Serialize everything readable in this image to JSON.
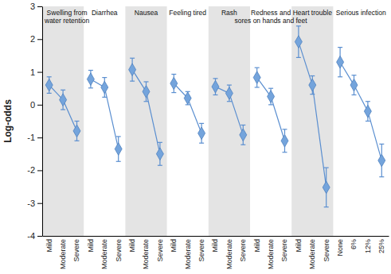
{
  "chart_data": {
    "type": "line",
    "y_label": "Log-odds",
    "ylim": [
      -4,
      3
    ],
    "yticks": [
      -4,
      -3,
      -2,
      -1,
      0,
      1,
      2,
      3
    ],
    "marker": "diamond",
    "color": "#5b8fd0",
    "series": [
      {
        "name": "Swelling from\nwater retention",
        "categories": [
          "Mild",
          "Moderate",
          "Severe"
        ],
        "values": [
          0.6,
          0.15,
          -0.8
        ],
        "errors": [
          0.25,
          0.3,
          0.3
        ]
      },
      {
        "name": "Diarrhea",
        "categories": [
          "Mild",
          "Moderate",
          "Severe"
        ],
        "values": [
          0.78,
          0.53,
          -1.35
        ],
        "errors": [
          0.27,
          0.3,
          0.38
        ]
      },
      {
        "name": "Nausea",
        "categories": [
          "Mild",
          "Moderate",
          "Severe"
        ],
        "values": [
          1.07,
          0.4,
          -1.5
        ],
        "errors": [
          0.35,
          0.3,
          0.35
        ]
      },
      {
        "name": "Feeling tired",
        "categories": [
          "Mild",
          "Moderate",
          "Severe"
        ],
        "values": [
          0.65,
          0.2,
          -0.87
        ],
        "errors": [
          0.28,
          0.2,
          0.3
        ]
      },
      {
        "name": "Rash",
        "categories": [
          "Mild",
          "Moderate",
          "Severe"
        ],
        "values": [
          0.55,
          0.35,
          -0.92
        ],
        "errors": [
          0.25,
          0.25,
          0.3
        ]
      },
      {
        "name": "Redness and\nsores on hands and feet",
        "categories": [
          "Mild",
          "Moderate",
          "Severe"
        ],
        "values": [
          0.83,
          0.25,
          -1.1
        ],
        "errors": [
          0.3,
          0.25,
          0.35
        ]
      },
      {
        "name": "Heart trouble",
        "categories": [
          "Mild",
          "Moderate",
          "Severe"
        ],
        "values": [
          1.92,
          0.6,
          -2.52
        ],
        "errors": [
          0.48,
          0.28,
          0.6
        ]
      },
      {
        "name": "Serious infection",
        "categories": [
          "None",
          "6%",
          "12%",
          "25%"
        ],
        "values": [
          1.3,
          0.6,
          -0.2,
          -1.7
        ],
        "errors": [
          0.45,
          0.3,
          0.3,
          0.5
        ]
      }
    ]
  }
}
